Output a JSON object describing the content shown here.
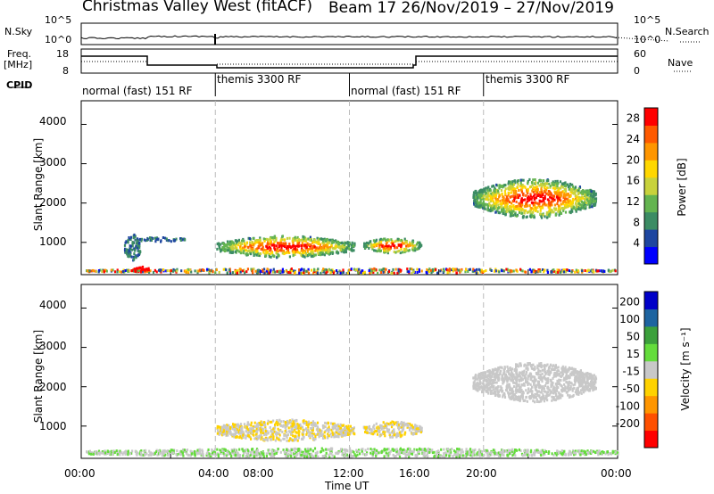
{
  "header": {
    "station_title": "Christmas Valley West (fitACF)",
    "beam_date": "Beam 17  26/Nov/2019 – 27/Nov/2019"
  },
  "noise_panel": {
    "left_label": "N.Sky",
    "left_ticks": [
      "10^5",
      "10^0"
    ],
    "right_label": "N.Search",
    "right_ticks": [
      "10^5",
      "10^0"
    ]
  },
  "freq_panel": {
    "left_label_1": "Freq.",
    "left_label_2": "[MHz]",
    "left_ticks": [
      "18",
      "8"
    ],
    "right_label": "Nave",
    "right_ticks": [
      "60",
      "0"
    ]
  },
  "cpid_panel": {
    "label": "CPID",
    "segments": [
      {
        "start": 0,
        "end": 6,
        "name": "normal (fast) 151 RF"
      },
      {
        "start": 6,
        "end": 12,
        "name": "themis 3300 RF"
      },
      {
        "start": 12,
        "end": 18,
        "name": "normal (fast) 151 RF"
      },
      {
        "start": 18,
        "end": 24,
        "name": "themis 3300 RF"
      }
    ]
  },
  "x_axis": {
    "label": "Time UT",
    "ticks": [
      "00:00",
      "04:00",
      "08:00",
      "12:00",
      "16:00",
      "20:00",
      "00:00"
    ]
  },
  "chart_data": [
    {
      "type": "heatmap",
      "parameter": "Power",
      "xlabel": "Time UT",
      "ylabel": "Slant Range [km]",
      "xlim": [
        0,
        24
      ],
      "ylim": [
        180,
        4600
      ],
      "yticks": [
        "1000",
        "2000",
        "3000",
        "4000"
      ],
      "colorbar": {
        "label": "Power [dB]",
        "ticks": [
          "4",
          "8",
          "12",
          "16",
          "20",
          "24",
          "28"
        ],
        "range": [
          0,
          30
        ],
        "colors": [
          "#0000ff",
          "#1e46a0",
          "#3c8c64",
          "#64b450",
          "#c8d23c",
          "#ffd700",
          "#ff9600",
          "#ff5a00",
          "#ff0000"
        ]
      },
      "regions": [
        {
          "t": [
            0.2,
            24.0
          ],
          "r": [
            200,
            320
          ],
          "level": "mixed"
        },
        {
          "t": [
            2.2,
            3.0
          ],
          "r": [
            220,
            380
          ],
          "level": "28"
        },
        {
          "t": [
            1.9,
            2.6
          ],
          "r": [
            500,
            1200
          ],
          "level": "8"
        },
        {
          "t": [
            2.4,
            4.6
          ],
          "r": [
            1000,
            1120
          ],
          "level": "8"
        },
        {
          "t": [
            6.0,
            12.2
          ],
          "r": [
            600,
            1150
          ],
          "level": "16-28"
        },
        {
          "t": [
            12.6,
            15.2
          ],
          "r": [
            700,
            1100
          ],
          "level": "12-24"
        },
        {
          "t": [
            17.5,
            23.0
          ],
          "r": [
            1600,
            2600
          ],
          "level": "12-28"
        }
      ]
    },
    {
      "type": "heatmap",
      "parameter": "Velocity",
      "xlabel": "Time UT",
      "ylabel": "Slant Range [km]",
      "xlim": [
        0,
        24
      ],
      "ylim": [
        180,
        4600
      ],
      "yticks": [
        "1000",
        "2000",
        "3000",
        "4000"
      ],
      "colorbar": {
        "label": "Velocity [m s⁻¹]",
        "ticks": [
          "200",
          "100",
          "50",
          "15",
          "-15",
          "-50",
          "-100",
          "-200"
        ],
        "range": [
          -250,
          250
        ],
        "colors": [
          "#ff0000",
          "#ff5000",
          "#ff9600",
          "#ffd200",
          "#c8c8c8",
          "#64dc3c",
          "#3ca03c",
          "#1e64a0",
          "#0000c8"
        ]
      },
      "regions": [
        {
          "t": [
            0.2,
            24.0
          ],
          "r": [
            200,
            420
          ],
          "level": "-15 to 50"
        },
        {
          "t": [
            6.0,
            12.2
          ],
          "r": [
            600,
            1150
          ],
          "level": "-50 to 15"
        },
        {
          "t": [
            12.6,
            15.2
          ],
          "r": [
            700,
            1100
          ],
          "level": "-50 to 15"
        },
        {
          "t": [
            17.5,
            23.0
          ],
          "r": [
            1600,
            2600
          ],
          "level": "-15 to 15"
        }
      ]
    }
  ]
}
